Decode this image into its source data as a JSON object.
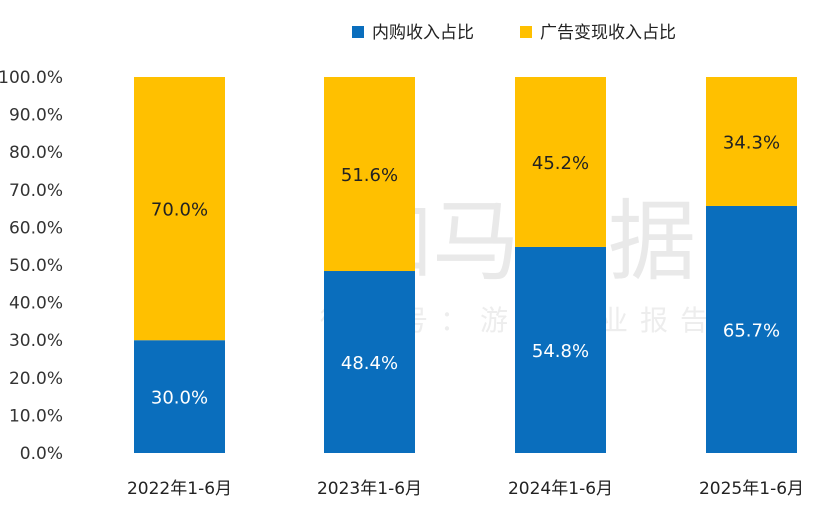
{
  "watermark": {
    "main": "伽马数据",
    "sub": "微信号：游戏产业报告"
  },
  "colors": {
    "series_1": "#0a6ebd",
    "series_2": "#ffc000"
  },
  "chart_data": {
    "type": "bar",
    "stacked": true,
    "categories": [
      "2022年1-6月",
      "2023年1-6月",
      "2024年1-6月",
      "2025年1-6月"
    ],
    "series": [
      {
        "name": "内购收入占比",
        "values": [
          30.0,
          48.4,
          54.8,
          65.7
        ],
        "labels": [
          "30.0%",
          "48.4%",
          "54.8%",
          "65.7%"
        ]
      },
      {
        "name": "广告变现收入占比",
        "values": [
          70.0,
          51.6,
          45.2,
          34.3
        ],
        "labels": [
          "70.0%",
          "51.6%",
          "45.2%",
          "34.3%"
        ]
      }
    ],
    "ylim": [
      0,
      100
    ],
    "yticks": [
      "0.0%",
      "10.0%",
      "20.0%",
      "30.0%",
      "40.0%",
      "50.0%",
      "60.0%",
      "70.0%",
      "80.0%",
      "90.0%",
      "100.0%"
    ],
    "legend_position": "top-right",
    "grid": false
  }
}
